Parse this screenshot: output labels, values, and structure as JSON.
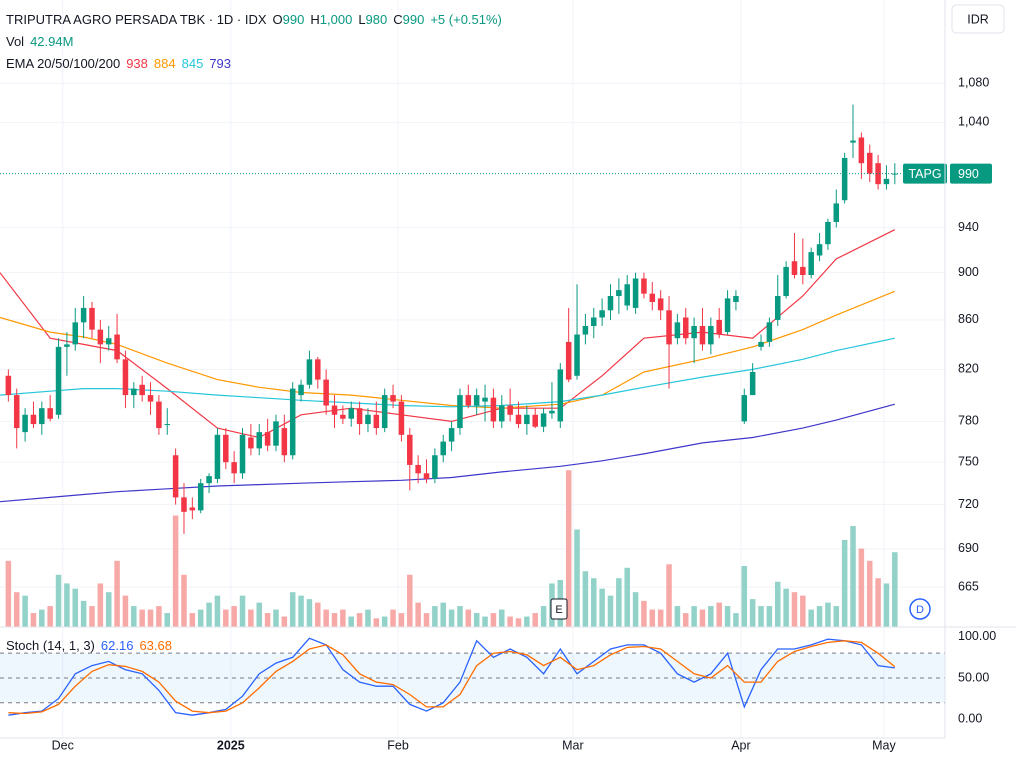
{
  "header": {
    "title": "TRIPUTRA AGRO PERSADA TBK · 1D · IDX",
    "fields": [
      {
        "label": "O",
        "value": 990
      },
      {
        "label": "H",
        "value": 1000,
        "value_label": "1,000"
      },
      {
        "label": "L",
        "value": 980
      },
      {
        "label": "C",
        "value": 990
      }
    ],
    "change": "+5 (+0.51%)",
    "currency": "IDR"
  },
  "markers": {
    "earnings": "E",
    "dividend": "D"
  },
  "chart_data": [
    {
      "type": "candlestick",
      "symbol": "TAPG",
      "last_price": 990,
      "log": true,
      "ylim": [
        640,
        1170
      ],
      "xlim": [
        -1,
        112
      ],
      "up_color": "#089981",
      "down_color": "#f23645",
      "grid": true,
      "yticks": [
        {
          "value": 1080,
          "label": "1,080"
        },
        {
          "value": 1040,
          "label": "1,040"
        },
        940,
        900,
        860,
        820,
        780,
        750,
        720,
        690,
        665
      ],
      "xticks": [
        {
          "value": 6.5,
          "label": "Dec"
        },
        {
          "value": 26.6,
          "label": "2025"
        },
        {
          "value": 46.6,
          "label": "Feb"
        },
        {
          "value": 67.5,
          "label": "Mar"
        },
        {
          "value": 87.6,
          "label": "Apr"
        },
        {
          "value": 104.7,
          "label": "May"
        }
      ],
      "ohlc": [
        [
          815,
          820,
          795,
          800
        ],
        [
          800,
          805,
          760,
          775
        ],
        [
          772,
          790,
          765,
          785
        ],
        [
          785,
          795,
          775,
          778
        ],
        [
          778,
          795,
          770,
          790
        ],
        [
          790,
          800,
          780,
          782
        ],
        [
          785,
          845,
          782,
          838
        ],
        [
          838,
          850,
          815,
          840
        ],
        [
          840,
          870,
          835,
          858
        ],
        [
          858,
          880,
          845,
          870
        ],
        [
          870,
          875,
          845,
          852
        ],
        [
          852,
          860,
          825,
          840
        ],
        [
          840,
          855,
          835,
          845
        ],
        [
          848,
          865,
          825,
          828
        ],
        [
          828,
          835,
          790,
          800
        ],
        [
          800,
          810,
          790,
          805
        ],
        [
          808,
          815,
          795,
          800
        ],
        [
          800,
          810,
          785,
          795
        ],
        [
          795,
          800,
          770,
          775
        ],
        [
          778,
          790,
          770,
          778
        ],
        [
          755,
          760,
          720,
          725
        ],
        [
          725,
          735,
          700,
          715
        ],
        [
          718,
          725,
          710,
          716
        ],
        [
          716,
          738,
          714,
          735
        ],
        [
          735,
          742,
          728,
          740
        ],
        [
          738,
          775,
          735,
          770
        ],
        [
          770,
          775,
          745,
          750
        ],
        [
          750,
          758,
          735,
          742
        ],
        [
          742,
          775,
          738,
          770
        ],
        [
          768,
          778,
          755,
          760
        ],
        [
          760,
          778,
          755,
          772
        ],
        [
          772,
          782,
          758,
          762
        ],
        [
          762,
          785,
          758,
          780
        ],
        [
          775,
          785,
          750,
          755
        ],
        [
          755,
          810,
          752,
          805
        ],
        [
          800,
          812,
          795,
          808
        ],
        [
          808,
          835,
          805,
          828
        ],
        [
          828,
          830,
          805,
          812
        ],
        [
          812,
          820,
          785,
          792
        ],
        [
          792,
          800,
          775,
          785
        ],
        [
          785,
          792,
          778,
          782
        ],
        [
          782,
          795,
          776,
          790
        ],
        [
          790,
          795,
          770,
          778
        ],
        [
          778,
          790,
          772,
          785
        ],
        [
          785,
          795,
          770,
          775
        ],
        [
          775,
          805,
          772,
          800
        ],
        [
          800,
          808,
          790,
          795
        ],
        [
          795,
          800,
          765,
          770
        ],
        [
          770,
          775,
          730,
          748
        ],
        [
          748,
          755,
          735,
          742
        ],
        [
          742,
          752,
          735,
          738
        ],
        [
          738,
          760,
          735,
          755
        ],
        [
          755,
          770,
          750,
          765
        ],
        [
          765,
          780,
          758,
          775
        ],
        [
          775,
          805,
          770,
          800
        ],
        [
          800,
          808,
          790,
          792
        ],
        [
          792,
          805,
          785,
          800
        ],
        [
          795,
          808,
          780,
          798
        ],
        [
          798,
          805,
          775,
          780
        ],
        [
          780,
          800,
          775,
          792
        ],
        [
          792,
          805,
          780,
          785
        ],
        [
          785,
          795,
          775,
          778
        ],
        [
          778,
          792,
          770,
          785
        ],
        [
          785,
          790,
          775,
          776
        ],
        [
          776,
          790,
          772,
          786
        ],
        [
          786,
          810,
          782,
          788
        ],
        [
          780,
          825,
          775,
          820
        ],
        [
          842,
          870,
          810,
          812
        ],
        [
          815,
          890,
          812,
          848
        ],
        [
          848,
          865,
          840,
          855
        ],
        [
          855,
          870,
          845,
          862
        ],
        [
          862,
          878,
          855,
          868
        ],
        [
          868,
          890,
          860,
          880
        ],
        [
          880,
          895,
          865,
          885
        ],
        [
          872,
          898,
          868,
          890
        ],
        [
          870,
          900,
          865,
          895
        ],
        [
          895,
          900,
          878,
          882
        ],
        [
          882,
          892,
          868,
          875
        ],
        [
          878,
          885,
          860,
          868
        ],
        [
          868,
          880,
          805,
          840
        ],
        [
          845,
          865,
          840,
          858
        ],
        [
          862,
          870,
          840,
          845
        ],
        [
          845,
          862,
          825,
          855
        ],
        [
          855,
          870,
          835,
          840
        ],
        [
          840,
          862,
          832,
          855
        ],
        [
          860,
          870,
          845,
          848
        ],
        [
          850,
          885,
          848,
          878
        ],
        [
          875,
          885,
          868,
          880
        ],
        [
          780,
          805,
          778,
          800
        ],
        [
          800,
          825,
          800,
          818
        ],
        [
          838,
          848,
          835,
          842
        ],
        [
          842,
          862,
          838,
          858
        ],
        [
          860,
          898,
          855,
          880
        ],
        [
          880,
          910,
          878,
          905
        ],
        [
          910,
          935,
          895,
          898
        ],
        [
          905,
          930,
          890,
          898
        ],
        [
          898,
          922,
          895,
          918
        ],
        [
          915,
          935,
          910,
          925
        ],
        [
          925,
          948,
          920,
          945
        ],
        [
          945,
          975,
          940,
          962
        ],
        [
          965,
          1010,
          962,
          1005
        ],
        [
          1020,
          1058,
          1005,
          1022
        ],
        [
          1025,
          1030,
          985,
          1000
        ],
        [
          1010,
          1018,
          982,
          990
        ],
        [
          1000,
          1008,
          975,
          980
        ],
        [
          980,
          998,
          975,
          985
        ],
        [
          990,
          1000,
          980,
          990
        ]
      ],
      "volume": {
        "name": "Vol",
        "last_label": "42.94M",
        "ylim": [
          0,
          360
        ],
        "up_color": "#92d2c8",
        "down_color": "#f7a9a7",
        "values": [
          38,
          20,
          18,
          8,
          10,
          12,
          30,
          25,
          22,
          15,
          12,
          25,
          20,
          38,
          18,
          12,
          10,
          10,
          12,
          8,
          64,
          30,
          8,
          10,
          14,
          18,
          10,
          12,
          18,
          10,
          14,
          8,
          10,
          6,
          20,
          18,
          16,
          14,
          10,
          8,
          10,
          6,
          8,
          10,
          5,
          6,
          10,
          8,
          30,
          14,
          8,
          12,
          14,
          10,
          12,
          10,
          8,
          6,
          8,
          10,
          6,
          5,
          6,
          8,
          12,
          25,
          27,
          90,
          56,
          32,
          28,
          22,
          18,
          28,
          34,
          20,
          15,
          10,
          10,
          36,
          12,
          8,
          12,
          10,
          12,
          14,
          12,
          8,
          35,
          16,
          12,
          12,
          26,
          22,
          20,
          18,
          10,
          12,
          14,
          12,
          50,
          58,
          45,
          38,
          28,
          25,
          42.94
        ]
      },
      "ema_label": "EMA 20/50/100/200",
      "series": [
        {
          "color": "#f23645",
          "x": [
            -1,
            5,
            9,
            13,
            19,
            25,
            30,
            35,
            41,
            47,
            53,
            59,
            66,
            71,
            76,
            83,
            89,
            95,
            99,
            106
          ],
          "values": [
            900,
            845,
            840,
            835,
            805,
            775,
            768,
            785,
            790,
            785,
            780,
            790,
            790,
            815,
            845,
            850,
            845,
            880,
            912,
            938
          ]
        },
        {
          "color": "#ff9800",
          "x": [
            -1,
            5,
            9,
            13,
            19,
            25,
            30,
            35,
            41,
            47,
            53,
            59,
            66,
            71,
            76,
            83,
            89,
            95,
            99,
            106
          ],
          "values": [
            862,
            850,
            846,
            840,
            825,
            812,
            806,
            802,
            800,
            796,
            792,
            790,
            793,
            800,
            818,
            828,
            838,
            852,
            864,
            884
          ]
        },
        {
          "color": "#26c6da",
          "x": [
            -1,
            5,
            9,
            13,
            19,
            25,
            30,
            35,
            41,
            47,
            53,
            59,
            66,
            71,
            76,
            83,
            89,
            95,
            99,
            106
          ],
          "values": [
            800,
            803,
            805,
            805,
            803,
            800,
            798,
            796,
            794,
            792,
            791,
            792,
            795,
            800,
            806,
            814,
            820,
            828,
            835,
            845
          ]
        },
        {
          "color": "#3f37c9",
          "x": [
            -1,
            5,
            9,
            13,
            19,
            25,
            30,
            35,
            41,
            47,
            53,
            59,
            66,
            71,
            76,
            83,
            89,
            95,
            99,
            106
          ],
          "values": [
            722,
            725,
            727,
            729,
            731,
            733,
            734,
            735,
            736,
            737,
            739,
            743,
            747,
            751,
            756,
            764,
            768,
            775,
            781,
            793
          ]
        }
      ]
    },
    {
      "type": "line",
      "title": "Stoch (14, 1, 3)",
      "ylim": [
        -25,
        108
      ],
      "xlim": [
        -1,
        112
      ],
      "yticks": [
        {
          "value": 100,
          "label": "100.00"
        },
        {
          "value": 50,
          "label": "50.00"
        },
        {
          "value": 0,
          "label": "0.00"
        }
      ],
      "bands": [
        20,
        50,
        80
      ],
      "x": [
        0,
        2,
        4,
        6,
        8,
        10,
        12,
        14,
        16,
        18,
        20,
        22,
        24,
        26,
        28,
        30,
        32,
        34,
        36,
        38,
        40,
        42,
        44,
        46,
        48,
        50,
        52,
        54,
        56,
        58,
        60,
        62,
        64,
        66,
        68,
        70,
        72,
        74,
        76,
        78,
        80,
        82,
        84,
        86,
        88,
        90,
        92,
        94,
        96,
        98,
        100,
        102,
        104,
        106
      ],
      "series": [
        {
          "color": "#2962ff",
          "values": [
            5,
            8,
            10,
            25,
            55,
            65,
            70,
            60,
            55,
            35,
            8,
            5,
            8,
            12,
            28,
            55,
            68,
            75,
            98,
            90,
            60,
            45,
            40,
            40,
            18,
            10,
            20,
            45,
            95,
            75,
            85,
            75,
            55,
            85,
            55,
            70,
            85,
            90,
            90,
            80,
            55,
            45,
            55,
            80,
            15,
            60,
            85,
            85,
            90,
            97,
            95,
            90,
            65,
            62.16
          ]
        },
        {
          "color": "#ff6d00",
          "values": [
            8,
            7,
            9,
            18,
            40,
            58,
            66,
            64,
            58,
            45,
            22,
            10,
            8,
            10,
            20,
            38,
            58,
            70,
            85,
            90,
            78,
            55,
            45,
            42,
            30,
            15,
            15,
            30,
            65,
            80,
            82,
            78,
            65,
            75,
            60,
            65,
            78,
            87,
            88,
            85,
            70,
            55,
            50,
            65,
            45,
            45,
            70,
            82,
            88,
            93,
            95,
            93,
            80,
            63.68
          ]
        }
      ]
    }
  ]
}
